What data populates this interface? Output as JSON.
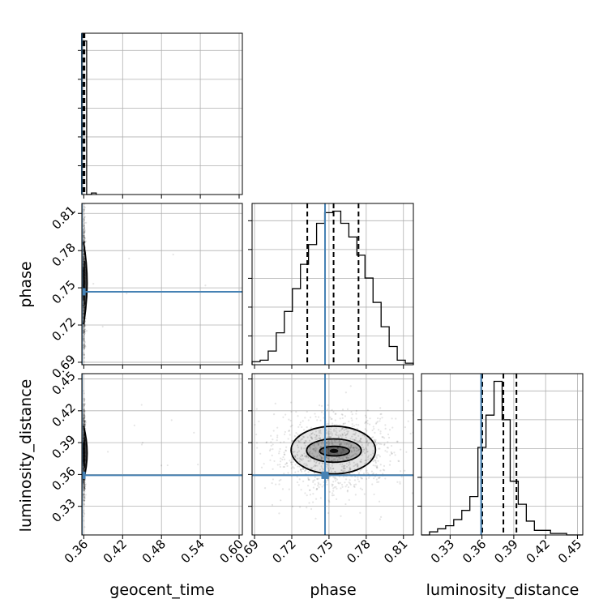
{
  "chart_data": {
    "type": "corner",
    "parameters": [
      "geocent_time",
      "phase",
      "luminosity_distance"
    ],
    "axis_labels": {
      "geocent_time": "geocent_time",
      "phase": "phase",
      "luminosity_distance": "luminosity_distance"
    },
    "ranges": {
      "geocent_time": [
        0.357,
        0.605
      ],
      "phase": [
        0.688,
        0.818
      ],
      "luminosity_distance": [
        0.303,
        0.455
      ]
    },
    "ticks": {
      "geocent_time": [
        "0.36",
        "0.42",
        "0.48",
        "0.54",
        "0.60"
      ],
      "phase": [
        "0.69",
        "0.72",
        "0.75",
        "0.78",
        "0.81"
      ],
      "luminosity_distance": [
        "0.33",
        "0.36",
        "0.39",
        "0.42",
        "0.45"
      ]
    },
    "truths": {
      "geocent_time": 0.357,
      "phase": 0.7468,
      "luminosity_distance": 0.3592
    },
    "quantiles": {
      "geocent_time": [
        0.359,
        0.36,
        0.361
      ],
      "phase": [
        0.7325,
        0.7537,
        0.7738
      ],
      "luminosity_distance": [
        0.3603,
        0.3802,
        0.3925
      ]
    },
    "histograms": {
      "geocent_time": {
        "edges": [
          0.357,
          0.3644,
          0.3718,
          0.3792
        ],
        "counts": [
          1.0,
          0.0,
          0.01
        ]
      },
      "phase": {
        "edges": [
          0.688,
          0.6945,
          0.701,
          0.7075,
          0.714,
          0.7205,
          0.727,
          0.7335,
          0.74,
          0.7465,
          0.753,
          0.7595,
          0.766,
          0.7725,
          0.779,
          0.7855,
          0.792,
          0.7985,
          0.805,
          0.8115,
          0.818
        ],
        "counts": [
          0.02,
          0.03,
          0.09,
          0.21,
          0.35,
          0.5,
          0.66,
          0.79,
          0.93,
          1.0,
          1.01,
          0.93,
          0.84,
          0.72,
          0.57,
          0.41,
          0.25,
          0.12,
          0.03,
          0.01
        ]
      },
      "luminosity_distance": {
        "edges": [
          0.303,
          0.3106,
          0.3182,
          0.3258,
          0.3334,
          0.341,
          0.3486,
          0.3562,
          0.3638,
          0.3714,
          0.379,
          0.3866,
          0.3942,
          0.4018,
          0.4094,
          0.417,
          0.4246,
          0.4322,
          0.4398,
          0.4474,
          0.455
        ],
        "counts": [
          0.0,
          0.02,
          0.04,
          0.06,
          0.1,
          0.16,
          0.25,
          0.57,
          0.78,
          1.0,
          0.75,
          0.35,
          0.2,
          0.09,
          0.03,
          0.03,
          0.01,
          0.01,
          0.0,
          0.0
        ]
      }
    },
    "contour_levels": [
      {
        "phase": 0.7535,
        "distance": 0.383,
        "rx": 0.034,
        "ry": 0.0225
      },
      {
        "phase": 0.754,
        "distance": 0.3825,
        "rx": 0.022,
        "ry": 0.011
      },
      {
        "phase": 0.7545,
        "distance": 0.382,
        "rx": 0.012,
        "ry": 0.0045
      },
      {
        "phase": 0.754,
        "distance": 0.3822,
        "rx": 0.0035,
        "ry": 0.002
      }
    ],
    "grid": true,
    "truth_color": "#4682b4",
    "sample_color": "#000000"
  }
}
